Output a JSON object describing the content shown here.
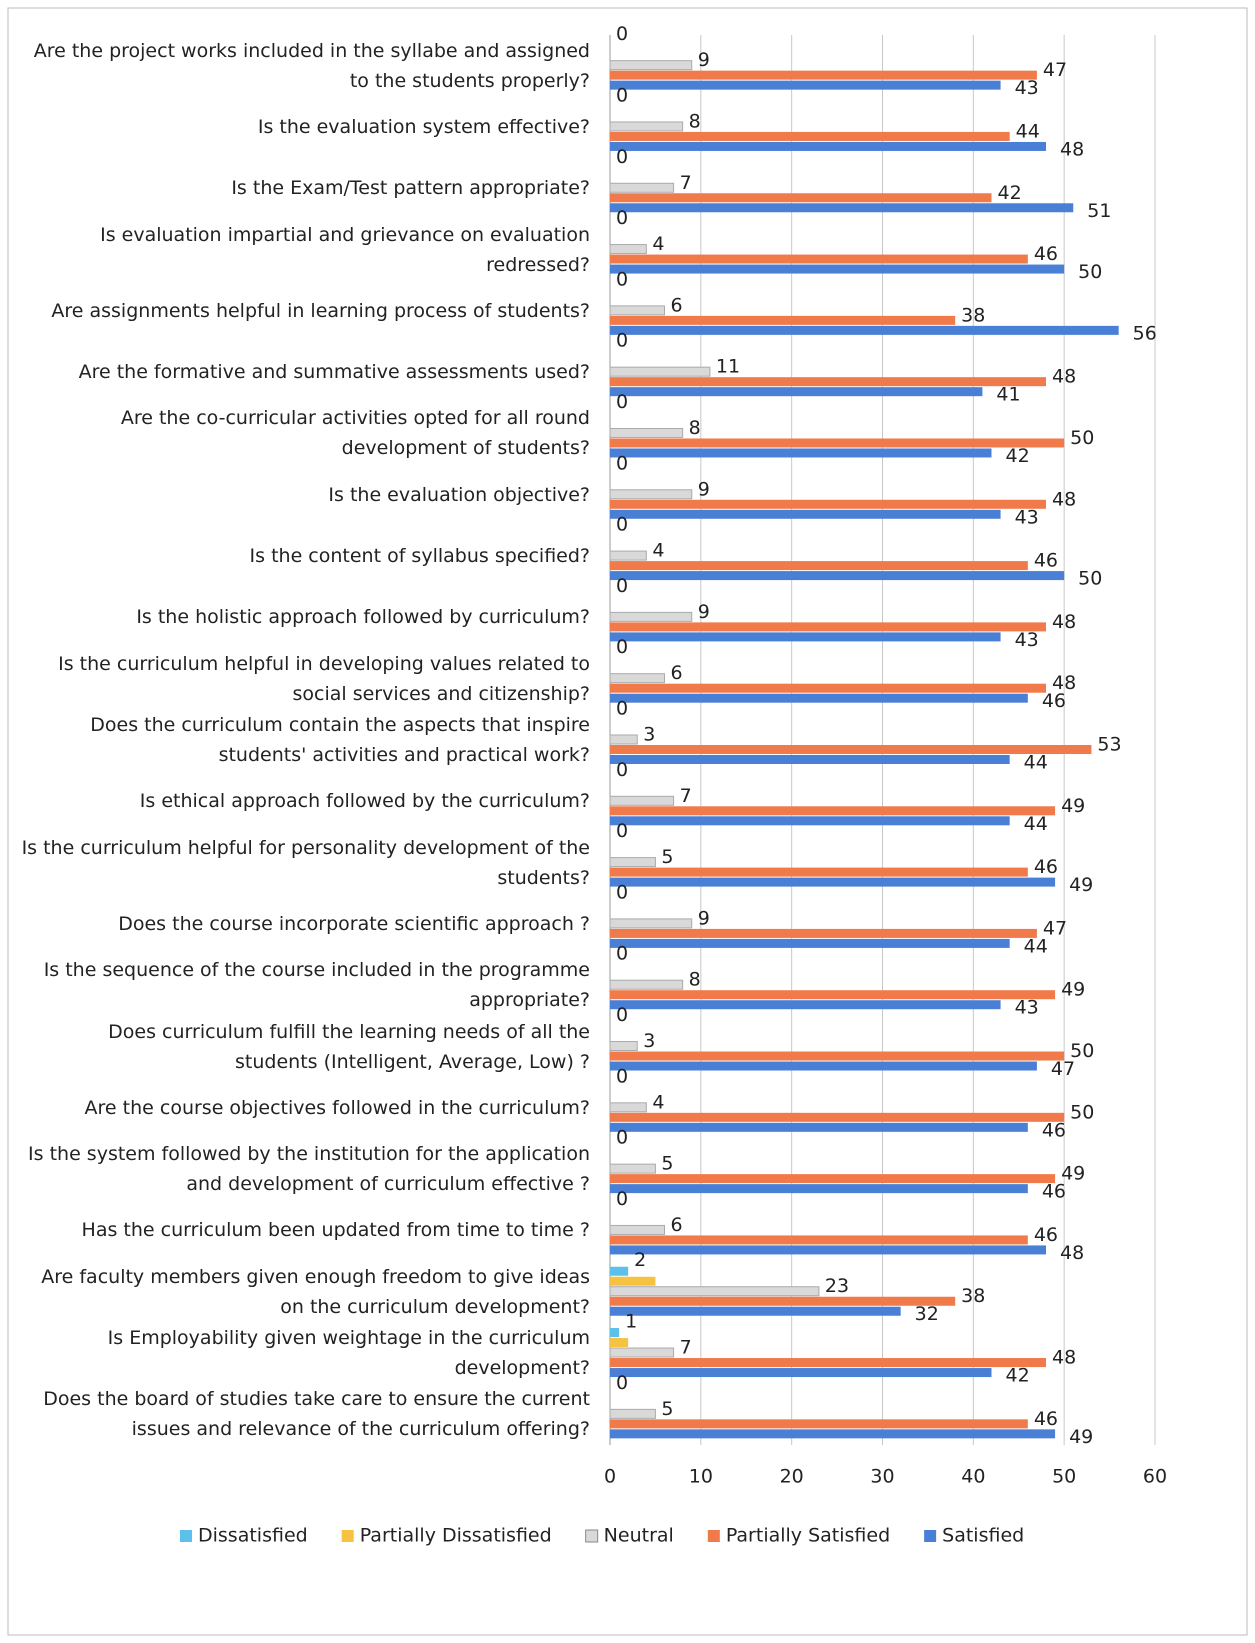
{
  "chart_data": {
    "type": "bar",
    "orientation": "horizontal",
    "categories": [
      "Are the project works included in the syllabe and assigned to the students properly?",
      "Is the evaluation system effective?",
      "Is the Exam/Test pattern appropriate?",
      "Is evaluation impartial and grievance on evaluation redressed?",
      "Are assignments helpful in learning process of students?",
      "Are the formative and summative assessments used?",
      "Are the co-curricular activities opted for all round development of students?",
      "Is the evaluation objective?",
      "Is the content of syllabus specified?",
      "Is the holistic approach followed by curriculum?",
      "Is the curriculum helpful in developing values related to social services and citizenship?",
      "Does the curriculum contain the aspects that inspire students' activities and practical work?",
      "Is ethical approach followed by the curriculum?",
      "Is the curriculum helpful for personality development of the students?",
      "Does the course incorporate scientific approach ?",
      "Is the sequence of the course included in the programme appropriate?",
      "Does curriculum fulfill the learning needs of all the students (Intelligent, Average, Low) ?",
      "Are the course objectives followed in the curriculum?",
      "Is the system followed by the institution for the application and development of curriculum effective ?",
      "Has the curriculum been updated from time to time ?",
      "Are faculty members given enough freedom to give ideas on the curriculum development?",
      "Is Employability given weightage in the curriculum development?",
      "Does the board of studies take care to ensure the current issues and relevance of the curriculum offering?"
    ],
    "series": [
      {
        "name": "Dissatisfied",
        "color": "#5bc0eb",
        "values": [
          0,
          0,
          0,
          0,
          0,
          0,
          0,
          0,
          0,
          0,
          0,
          0,
          0,
          0,
          0,
          0,
          0,
          0,
          0,
          0,
          2,
          1,
          0
        ]
      },
      {
        "name": "Partially Dissatisfied",
        "color": "#f5c242",
        "values": [
          0,
          0,
          0,
          0,
          0,
          0,
          0,
          0,
          0,
          0,
          0,
          0,
          0,
          0,
          0,
          0,
          0,
          0,
          0,
          0,
          5,
          2,
          0
        ]
      },
      {
        "name": "Neutral",
        "color": "#d9d9d9",
        "values": [
          9,
          8,
          7,
          4,
          6,
          11,
          8,
          9,
          4,
          9,
          6,
          3,
          7,
          5,
          9,
          8,
          3,
          4,
          5,
          6,
          23,
          7,
          5
        ]
      },
      {
        "name": "Partially Satisfied",
        "color": "#f07a4a",
        "values": [
          47,
          44,
          42,
          46,
          38,
          48,
          50,
          48,
          46,
          48,
          48,
          53,
          49,
          46,
          47,
          49,
          50,
          50,
          49,
          46,
          38,
          48,
          46
        ]
      },
      {
        "name": "Satisfied",
        "color": "#4a7fd6",
        "values": [
          43,
          48,
          51,
          50,
          56,
          41,
          42,
          43,
          50,
          43,
          46,
          44,
          44,
          49,
          44,
          43,
          47,
          46,
          46,
          48,
          32,
          42,
          49
        ]
      }
    ],
    "xlim": [
      0,
      60
    ],
    "xticks": [
      0,
      10,
      20,
      30,
      40,
      50,
      60
    ],
    "grid": true,
    "legend": "bottom"
  }
}
